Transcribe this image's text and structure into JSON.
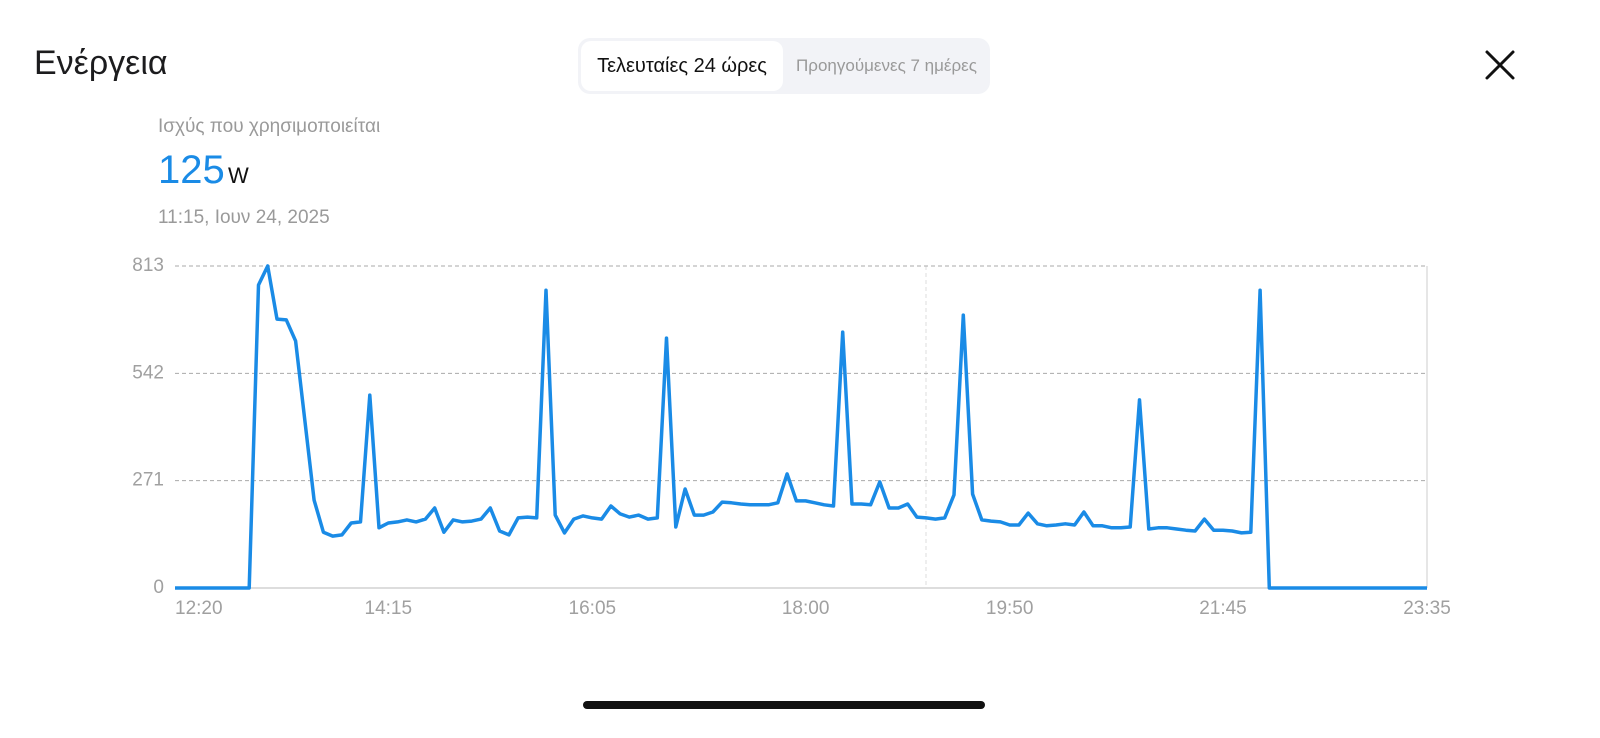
{
  "header": {
    "title": "Ενέργεια",
    "tabs": [
      "Τελευταίες 24 ώρες",
      "Προηγούμενες 7 ημέρες"
    ]
  },
  "readout": {
    "label": "Ισχύς που χρησιμοποιείται",
    "value": 125,
    "unit": "W",
    "timestamp": "11:15, Ιουν 24, 2025"
  },
  "chart_data": {
    "type": "line",
    "color": "#1a8be6",
    "grid": true,
    "categories": [
      "12:20",
      null,
      null,
      null,
      null,
      null,
      null,
      null,
      null,
      null,
      null,
      null,
      null,
      null,
      null,
      null,
      null,
      null,
      null,
      null,
      null,
      null,
      null,
      "14:15",
      null,
      null,
      null,
      null,
      null,
      null,
      null,
      null,
      null,
      null,
      null,
      null,
      null,
      null,
      null,
      null,
      null,
      null,
      null,
      null,
      null,
      "16:05",
      null,
      null,
      null,
      null,
      null,
      null,
      null,
      null,
      null,
      null,
      null,
      null,
      null,
      null,
      null,
      null,
      null,
      null,
      null,
      null,
      null,
      null,
      "18:00",
      null,
      null,
      null,
      null,
      null,
      null,
      null,
      null,
      null,
      null,
      null,
      null,
      null,
      null,
      null,
      null,
      null,
      null,
      null,
      null,
      null,
      "19:50",
      null,
      null,
      null,
      null,
      null,
      null,
      null,
      null,
      null,
      null,
      null,
      null,
      null,
      null,
      null,
      null,
      null,
      null,
      null,
      null,
      null,
      null,
      "21:45",
      null,
      null,
      null,
      null,
      null,
      null,
      null,
      null,
      null,
      null,
      null,
      null,
      null,
      null,
      null,
      null,
      null,
      null,
      null,
      null,
      null,
      "23:35"
    ],
    "values": [
      0,
      0,
      0,
      0,
      0,
      0,
      0,
      0,
      0,
      765,
      813,
      679,
      677,
      624,
      424,
      222,
      141,
      131,
      134,
      164,
      167,
      487,
      152,
      164,
      167,
      172,
      167,
      174,
      202,
      141,
      172,
      167,
      169,
      174,
      202,
      144,
      134,
      177,
      179,
      177,
      752,
      184,
      139,
      174,
      182,
      177,
      174,
      207,
      187,
      179,
      184,
      174,
      177,
      631,
      154,
      250,
      184,
      184,
      192,
      217,
      215,
      212,
      210,
      210,
      210,
      215,
      288,
      220,
      220,
      215,
      210,
      207,
      646,
      212,
      212,
      210,
      268,
      202,
      202,
      212,
      179,
      177,
      174,
      177,
      235,
      689,
      237,
      172,
      169,
      167,
      159,
      159,
      189,
      162,
      157,
      159,
      162,
      159,
      192,
      157,
      157,
      152,
      152,
      154,
      475,
      149,
      152,
      152,
      149,
      146,
      144,
      174,
      146,
      146,
      144,
      139,
      141,
      752,
      0,
      0,
      0,
      0,
      0,
      0,
      0,
      0,
      0,
      0,
      0,
      0,
      0,
      0,
      0,
      0,
      0,
      0
    ],
    "ylim": [
      0,
      813
    ],
    "yticks": [
      0,
      271,
      542,
      813
    ]
  }
}
